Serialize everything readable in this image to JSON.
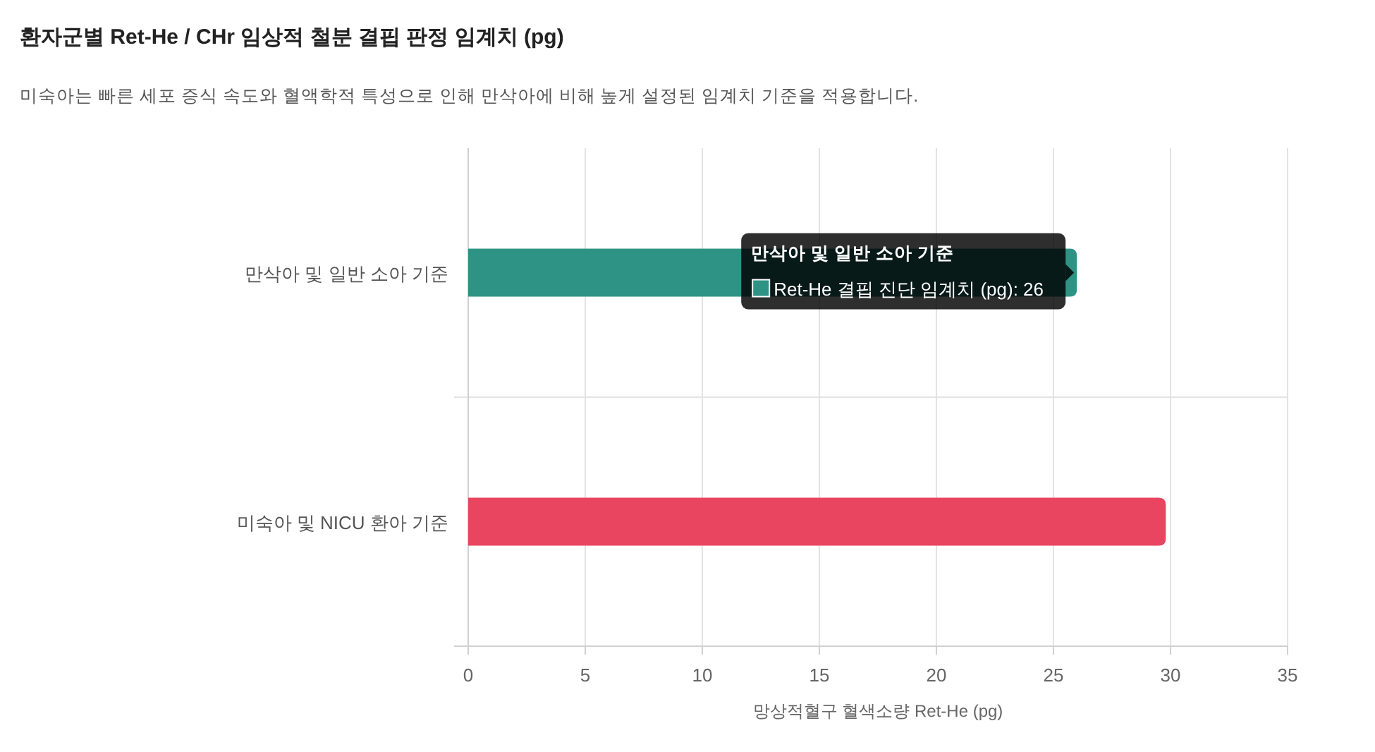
{
  "chart_data": {
    "type": "bar",
    "orientation": "horizontal",
    "title": "환자군별 Ret-He / CHr 임상적 철분 결핍 판정 임계치 (pg)",
    "subtitle": "미숙아는 빠른 세포 증식 속도와 혈액학적 특성으로 인해 만삭아에 비해 높게 설정된 임계치 기준을 적용합니다.",
    "xlabel": "망상적혈구 혈색소량 Ret-He (pg)",
    "categories": [
      "만삭아 및 일반 소아 기준",
      "미숙아 및 NICU 환아 기준"
    ],
    "values": [
      26,
      29.8
    ],
    "colors": [
      "#2e9384",
      "#e94560"
    ],
    "xlim": [
      0,
      35
    ],
    "xticks": [
      0,
      5,
      10,
      15,
      20,
      25,
      30,
      35
    ],
    "grid": true,
    "annotations": [
      {
        "text": "Ret-He 결핍 진단 임계치 (pg): 26",
        "x": 26,
        "y": "만삭아 및 일반 소아 기준"
      }
    ]
  }
}
